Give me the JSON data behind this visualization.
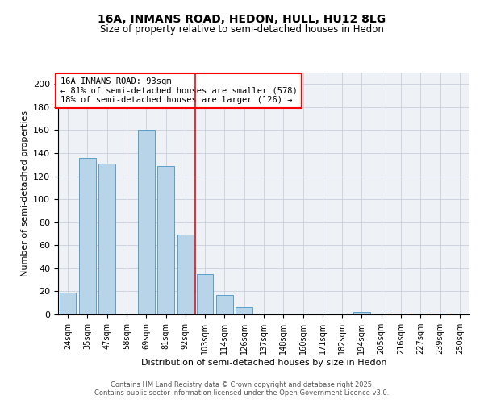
{
  "title1": "16A, INMANS ROAD, HEDON, HULL, HU12 8LG",
  "title2": "Size of property relative to semi-detached houses in Hedon",
  "xlabel": "Distribution of semi-detached houses by size in Hedon",
  "ylabel": "Number of semi-detached properties",
  "categories": [
    "24sqm",
    "35sqm",
    "47sqm",
    "58sqm",
    "69sqm",
    "81sqm",
    "92sqm",
    "103sqm",
    "114sqm",
    "126sqm",
    "137sqm",
    "148sqm",
    "160sqm",
    "171sqm",
    "182sqm",
    "194sqm",
    "205sqm",
    "216sqm",
    "227sqm",
    "239sqm",
    "250sqm"
  ],
  "values": [
    19,
    136,
    131,
    0,
    160,
    129,
    69,
    35,
    17,
    6,
    0,
    0,
    0,
    0,
    0,
    2,
    0,
    1,
    0,
    1,
    0
  ],
  "bar_color": "#b8d4e8",
  "bar_edge_color": "#5a9ec9",
  "property_line_index": 6,
  "annotation_title": "16A INMANS ROAD: 93sqm",
  "annotation_line1": "← 81% of semi-detached houses are smaller (578)",
  "annotation_line2": "18% of semi-detached houses are larger (126) →",
  "vline_color": "red",
  "ylim": [
    0,
    210
  ],
  "yticks": [
    0,
    20,
    40,
    60,
    80,
    100,
    120,
    140,
    160,
    180,
    200
  ],
  "footer1": "Contains HM Land Registry data © Crown copyright and database right 2025.",
  "footer2": "Contains public sector information licensed under the Open Government Licence v3.0.",
  "bg_color": "#eef2f7",
  "grid_color": "#c8d0dc"
}
